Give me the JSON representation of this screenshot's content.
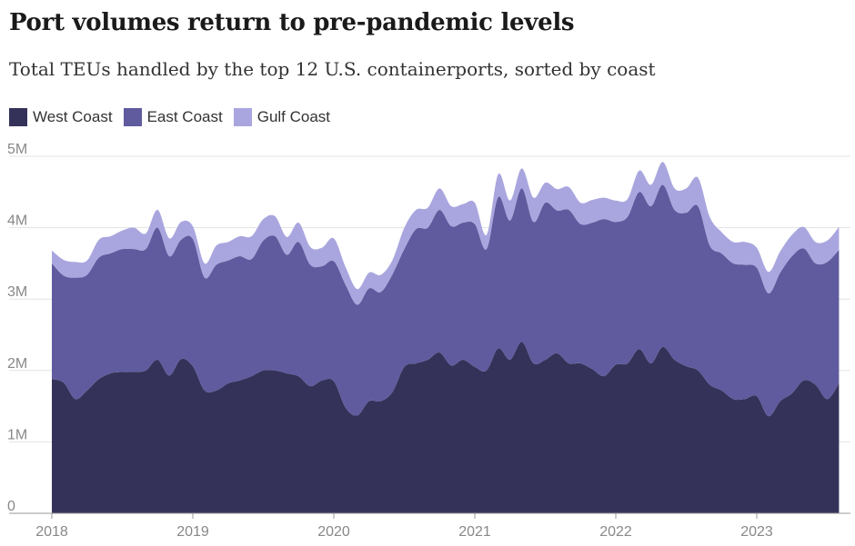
{
  "chart_data": {
    "type": "area",
    "title": "Port volumes return to pre-pandemic levels",
    "subtitle": "Total TEUs handled by the top 12 U.S. containerports, sorted by coast",
    "stacked": true,
    "y_unit": "millions of TEUs",
    "ylim": [
      0,
      5
    ],
    "y_ticks": [
      {
        "value": 0,
        "label": "0"
      },
      {
        "value": 1,
        "label": "1M"
      },
      {
        "value": 2,
        "label": "2M"
      },
      {
        "value": 3,
        "label": "3M"
      },
      {
        "value": 4,
        "label": "4M"
      },
      {
        "value": 5,
        "label": "5M"
      }
    ],
    "x_ticks": [
      "2018",
      "2019",
      "2020",
      "2021",
      "2022",
      "2023"
    ],
    "x_start": "2018-01",
    "series": [
      {
        "name": "West Coast",
        "color": "#35325a",
        "values": [
          1.88,
          1.83,
          1.6,
          1.72,
          1.88,
          1.96,
          1.98,
          1.98,
          2.0,
          2.15,
          1.93,
          2.16,
          2.06,
          1.72,
          1.72,
          1.82,
          1.86,
          1.92,
          2.0,
          2.0,
          1.96,
          1.92,
          1.78,
          1.86,
          1.85,
          1.48,
          1.37,
          1.57,
          1.57,
          1.7,
          2.05,
          2.1,
          2.15,
          2.25,
          2.07,
          2.15,
          2.05,
          2.0,
          2.31,
          2.15,
          2.4,
          2.1,
          2.15,
          2.24,
          2.1,
          2.1,
          2.02,
          1.92,
          2.08,
          2.1,
          2.3,
          2.1,
          2.33,
          2.15,
          2.06,
          2.0,
          1.8,
          1.72,
          1.6,
          1.6,
          1.64,
          1.36,
          1.57,
          1.68,
          1.86,
          1.8,
          1.6,
          1.82
        ]
      },
      {
        "name": "East Coast",
        "color": "#5f5b9e",
        "values": [
          1.62,
          1.5,
          1.7,
          1.62,
          1.7,
          1.68,
          1.72,
          1.72,
          1.7,
          1.85,
          1.67,
          1.67,
          1.78,
          1.58,
          1.76,
          1.72,
          1.74,
          1.64,
          1.82,
          1.88,
          1.66,
          1.88,
          1.7,
          1.6,
          1.68,
          1.72,
          1.55,
          1.58,
          1.53,
          1.65,
          1.65,
          1.88,
          1.85,
          2.0,
          1.95,
          1.92,
          2.0,
          1.7,
          2.12,
          1.95,
          2.15,
          1.98,
          2.2,
          2.0,
          2.15,
          1.95,
          2.05,
          2.2,
          2.0,
          2.05,
          2.2,
          2.2,
          2.27,
          2.1,
          2.15,
          2.3,
          1.95,
          1.92,
          1.9,
          1.88,
          1.8,
          1.72,
          1.8,
          1.92,
          1.85,
          1.7,
          1.92,
          1.87
        ]
      },
      {
        "name": "Gulf Coast",
        "color": "#a9a6df",
        "values": [
          0.18,
          0.22,
          0.22,
          0.2,
          0.25,
          0.24,
          0.26,
          0.3,
          0.22,
          0.25,
          0.25,
          0.25,
          0.18,
          0.2,
          0.27,
          0.26,
          0.28,
          0.32,
          0.3,
          0.28,
          0.25,
          0.27,
          0.25,
          0.26,
          0.32,
          0.25,
          0.22,
          0.22,
          0.24,
          0.2,
          0.3,
          0.27,
          0.28,
          0.3,
          0.28,
          0.26,
          0.3,
          0.2,
          0.32,
          0.28,
          0.28,
          0.34,
          0.28,
          0.3,
          0.32,
          0.3,
          0.32,
          0.3,
          0.3,
          0.25,
          0.3,
          0.3,
          0.32,
          0.3,
          0.34,
          0.4,
          0.4,
          0.3,
          0.3,
          0.32,
          0.28,
          0.3,
          0.3,
          0.3,
          0.3,
          0.3,
          0.3,
          0.32
        ]
      }
    ]
  }
}
